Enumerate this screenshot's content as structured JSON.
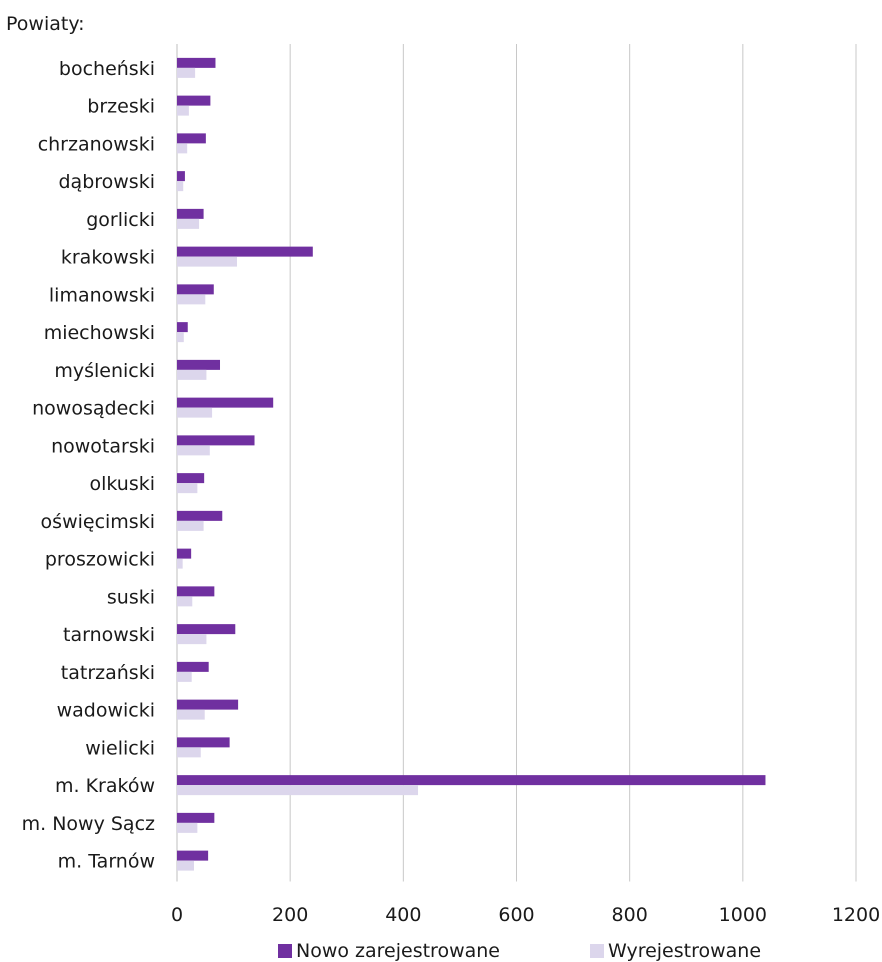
{
  "chart_data": {
    "type": "bar",
    "orientation": "horizontal",
    "title": "",
    "y_axis_title": "Powiaty:",
    "categories": [
      "bocheński",
      "brzeski",
      "chrzanowski",
      "dąbrowski",
      "gorlicki",
      "krakowski",
      "limanowski",
      "miechowski",
      "myślenicki",
      "nowosądecki",
      "nowotarski",
      "olkuski",
      "oświęcimski",
      "proszowicki",
      "suski",
      "tarnowski",
      "tatrzański",
      "wadowicki",
      "wielicki",
      "m. Kraków",
      "m. Nowy Sącz",
      "m. Tarnów"
    ],
    "series": [
      {
        "name": "Nowo zarejestrowane",
        "color": "#7030a0",
        "values": [
          68,
          59,
          51,
          14,
          47,
          240,
          65,
          19,
          76,
          170,
          137,
          48,
          80,
          25,
          66,
          103,
          56,
          108,
          93,
          1040,
          66,
          55
        ]
      },
      {
        "name": "Wyrejestrowane",
        "color": "#dcd6ec",
        "values": [
          32,
          21,
          18,
          11,
          39,
          106,
          50,
          12,
          52,
          62,
          58,
          36,
          47,
          10,
          27,
          52,
          26,
          49,
          42,
          426,
          36,
          30
        ]
      }
    ],
    "xlim": [
      0,
      1200
    ],
    "xticks": [
      "0",
      "200",
      "400",
      "600",
      "800",
      "1000",
      "1200"
    ],
    "grid": true,
    "legend_position": "bottom"
  }
}
